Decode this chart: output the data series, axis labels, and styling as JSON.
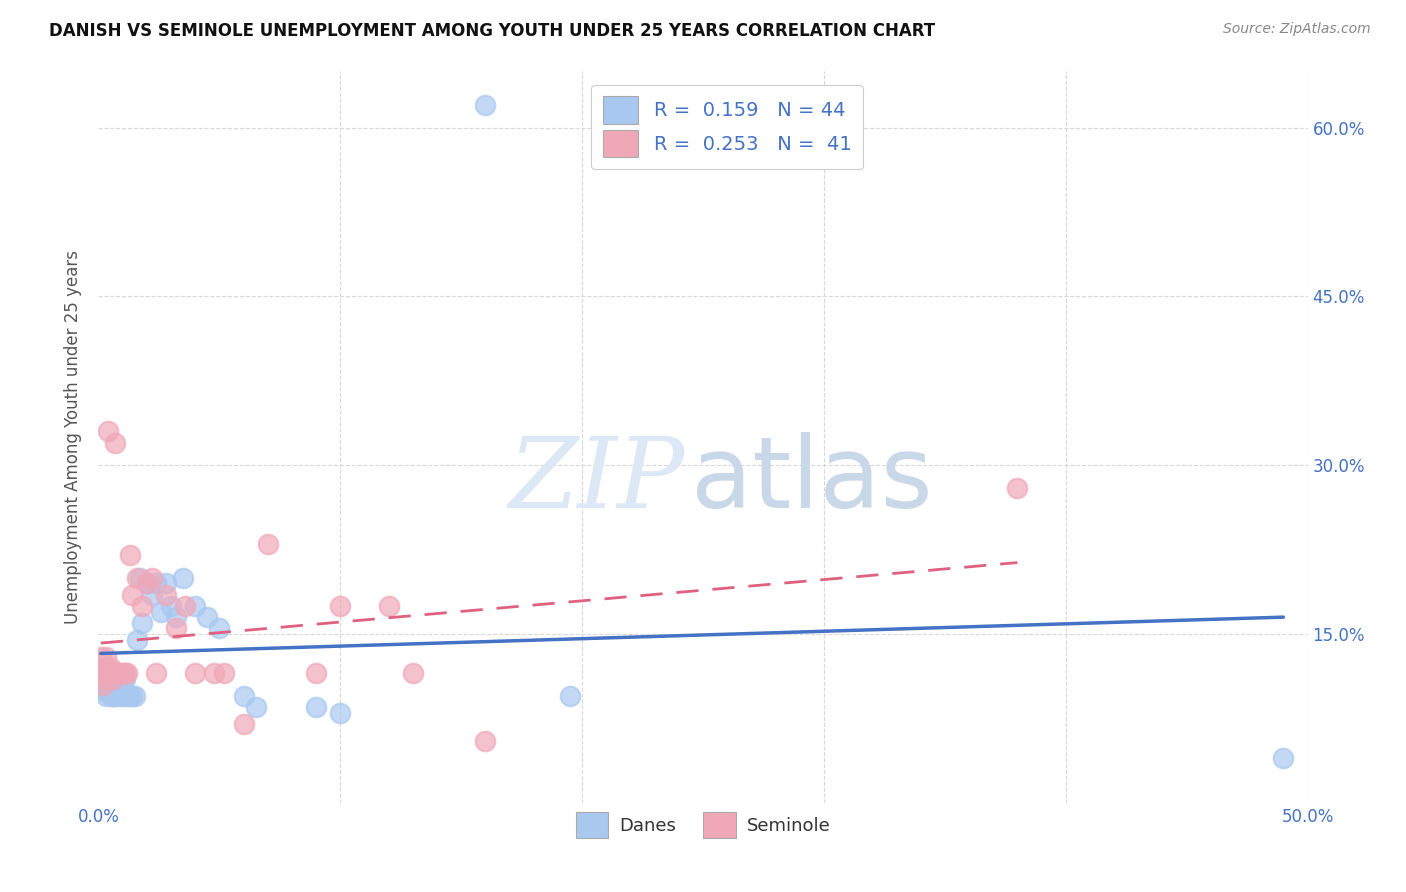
{
  "title": "DANISH VS SEMINOLE UNEMPLOYMENT AMONG YOUTH UNDER 25 YEARS CORRELATION CHART",
  "source": "Source: ZipAtlas.com",
  "ylabel": "Unemployment Among Youth under 25 years",
  "xlim": [
    0.0,
    0.5
  ],
  "ylim": [
    0.0,
    0.65
  ],
  "danes_color": "#a8c8f0",
  "seminole_color": "#f0a8b8",
  "danes_line_color": "#4472c4",
  "seminole_line_color": "#e06080",
  "danes_R": 0.159,
  "danes_N": 44,
  "seminole_R": 0.253,
  "seminole_N": 41,
  "danes_x": [
    0.001,
    0.001,
    0.002,
    0.002,
    0.003,
    0.003,
    0.003,
    0.004,
    0.004,
    0.005,
    0.005,
    0.006,
    0.006,
    0.007,
    0.008,
    0.009,
    0.01,
    0.01,
    0.011,
    0.012,
    0.013,
    0.014,
    0.015,
    0.016,
    0.017,
    0.018,
    0.02,
    0.022,
    0.024,
    0.026,
    0.028,
    0.03,
    0.032,
    0.035,
    0.04,
    0.045,
    0.05,
    0.06,
    0.065,
    0.09,
    0.1,
    0.16,
    0.195,
    0.49
  ],
  "danes_y": [
    0.12,
    0.11,
    0.105,
    0.1,
    0.12,
    0.115,
    0.095,
    0.11,
    0.1,
    0.108,
    0.095,
    0.112,
    0.095,
    0.095,
    0.1,
    0.095,
    0.11,
    0.095,
    0.11,
    0.095,
    0.095,
    0.095,
    0.095,
    0.145,
    0.2,
    0.16,
    0.195,
    0.185,
    0.195,
    0.17,
    0.195,
    0.175,
    0.165,
    0.2,
    0.175,
    0.165,
    0.155,
    0.095,
    0.085,
    0.085,
    0.08,
    0.62,
    0.095,
    0.04
  ],
  "seminole_x": [
    0.001,
    0.001,
    0.002,
    0.002,
    0.002,
    0.003,
    0.003,
    0.003,
    0.004,
    0.004,
    0.005,
    0.005,
    0.006,
    0.006,
    0.007,
    0.008,
    0.009,
    0.01,
    0.011,
    0.012,
    0.013,
    0.014,
    0.016,
    0.018,
    0.02,
    0.022,
    0.024,
    0.028,
    0.032,
    0.036,
    0.04,
    0.048,
    0.052,
    0.06,
    0.07,
    0.09,
    0.1,
    0.12,
    0.13,
    0.16,
    0.38
  ],
  "seminole_y": [
    0.12,
    0.13,
    0.105,
    0.11,
    0.115,
    0.13,
    0.115,
    0.12,
    0.33,
    0.115,
    0.115,
    0.12,
    0.11,
    0.115,
    0.32,
    0.115,
    0.115,
    0.115,
    0.115,
    0.115,
    0.22,
    0.185,
    0.2,
    0.175,
    0.195,
    0.2,
    0.115,
    0.185,
    0.155,
    0.175,
    0.115,
    0.115,
    0.115,
    0.07,
    0.23,
    0.115,
    0.175,
    0.175,
    0.115,
    0.055,
    0.28
  ],
  "background_color": "#ffffff",
  "grid_color": "#d8d8d8",
  "watermark_zip_color": "#dce8f5",
  "watermark_atlas_color": "#c8d8e8"
}
